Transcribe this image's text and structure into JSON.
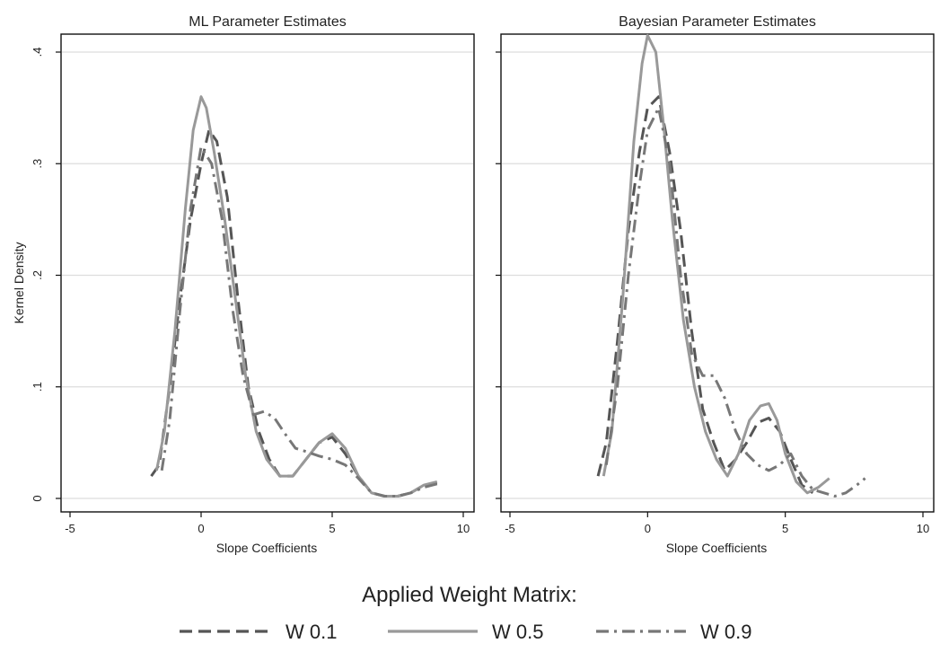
{
  "figure": {
    "ylabel": "Kernel Density",
    "legend_title": "Applied Weight Matrix:",
    "legend_placement": "bottom-center"
  },
  "series_styles": [
    {
      "name": "W 0.1",
      "color": "#555555",
      "dash": "dashed"
    },
    {
      "name": "W 0.5",
      "color": "#999999",
      "dash": "solid"
    },
    {
      "name": "W 0.9",
      "color": "#777777",
      "dash": "dash-dot"
    }
  ],
  "chart_data": [
    {
      "type": "line",
      "title": "ML Parameter Estimates",
      "xlabel": "Slope Coefficients",
      "ylabel": "Kernel Density",
      "xlim": [
        -5,
        10
      ],
      "ylim": [
        0,
        0.4
      ],
      "xticks": [
        -5,
        0,
        5,
        10
      ],
      "xtick_labels": [
        "-5",
        "0",
        "5",
        "10"
      ],
      "yticks": [
        0,
        0.1,
        0.2,
        0.3,
        0.4
      ],
      "ytick_labels": [
        "0",
        ".1",
        ".2",
        ".3",
        ".4"
      ],
      "grid": "horizontal",
      "series": [
        {
          "name": "W 0.1",
          "x": [
            -1.9,
            -1.6,
            -1.2,
            -0.8,
            -0.4,
            0,
            0.3,
            0.6,
            1,
            1.4,
            1.8,
            2.2,
            2.6,
            3,
            3.5,
            4,
            4.5,
            5,
            5.5,
            6,
            6.5,
            7,
            7.5,
            8,
            8.5,
            9
          ],
          "y": [
            0.02,
            0.03,
            0.1,
            0.18,
            0.25,
            0.3,
            0.33,
            0.32,
            0.27,
            0.18,
            0.1,
            0.06,
            0.035,
            0.02,
            0.02,
            0.035,
            0.05,
            0.055,
            0.04,
            0.02,
            0.005,
            0.002,
            0.002,
            0.005,
            0.012,
            0.014
          ]
        },
        {
          "name": "W 0.5",
          "x": [
            -1.7,
            -1.4,
            -1,
            -0.6,
            -0.3,
            0,
            0.2,
            0.5,
            0.9,
            1.3,
            1.7,
            2.1,
            2.5,
            3,
            3.5,
            4,
            4.5,
            5,
            5.5,
            6,
            6.5,
            7,
            7.5,
            8,
            8.5,
            9
          ],
          "y": [
            0.025,
            0.06,
            0.15,
            0.26,
            0.33,
            0.36,
            0.35,
            0.31,
            0.25,
            0.18,
            0.11,
            0.06,
            0.035,
            0.02,
            0.02,
            0.035,
            0.05,
            0.058,
            0.045,
            0.02,
            0.005,
            0.002,
            0.002,
            0.005,
            0.012,
            0.015
          ]
        },
        {
          "name": "W 0.9",
          "x": [
            -1.5,
            -1.2,
            -0.8,
            -0.4,
            0,
            0.4,
            0.8,
            1.2,
            1.6,
            2,
            2.4,
            2.8,
            3.2,
            3.6,
            4,
            4.5,
            5,
            5.5,
            6,
            6.5,
            7,
            7.5,
            8,
            8.5,
            9
          ],
          "y": [
            0.025,
            0.07,
            0.17,
            0.26,
            0.315,
            0.3,
            0.25,
            0.17,
            0.11,
            0.075,
            0.078,
            0.072,
            0.058,
            0.045,
            0.042,
            0.038,
            0.035,
            0.03,
            0.018,
            0.005,
            0.002,
            0.002,
            0.005,
            0.01,
            0.013
          ]
        }
      ]
    },
    {
      "type": "line",
      "title": "Bayesian Parameter Estimates",
      "xlabel": "Slope Coefficients",
      "ylabel": "",
      "xlim": [
        -5,
        10
      ],
      "ylim": [
        0,
        0.4
      ],
      "xticks": [
        -5,
        0,
        5,
        10
      ],
      "xtick_labels": [
        "-5",
        "0",
        "5",
        "10"
      ],
      "yticks": [
        0,
        0.1,
        0.2,
        0.3,
        0.4
      ],
      "ytick_labels": [
        "0",
        ".1",
        ".2",
        ".3",
        ".4"
      ],
      "grid": "horizontal",
      "series": [
        {
          "name": "W 0.1",
          "x": [
            -1.8,
            -1.5,
            -1.1,
            -0.7,
            -0.3,
            0,
            0.4,
            0.8,
            1.2,
            1.6,
            2,
            2.4,
            2.8,
            3.2,
            3.6,
            4,
            4.4,
            4.8,
            5.2,
            5.6,
            6
          ],
          "y": [
            0.02,
            0.05,
            0.14,
            0.24,
            0.31,
            0.35,
            0.36,
            0.31,
            0.24,
            0.15,
            0.08,
            0.05,
            0.025,
            0.035,
            0.05,
            0.068,
            0.072,
            0.06,
            0.035,
            0.012,
            0.005
          ]
        },
        {
          "name": "W 0.5",
          "x": [
            -1.6,
            -1.3,
            -0.9,
            -0.5,
            -0.2,
            0,
            0.3,
            0.6,
            0.9,
            1.3,
            1.7,
            2.1,
            2.5,
            2.9,
            3.3,
            3.7,
            4.1,
            4.4,
            4.7,
            5,
            5.4,
            5.8,
            6.2,
            6.6
          ],
          "y": [
            0.02,
            0.06,
            0.18,
            0.32,
            0.39,
            0.415,
            0.4,
            0.33,
            0.25,
            0.16,
            0.1,
            0.06,
            0.035,
            0.02,
            0.04,
            0.07,
            0.083,
            0.085,
            0.07,
            0.04,
            0.015,
            0.005,
            0.01,
            0.018
          ]
        },
        {
          "name": "W 0.9",
          "x": [
            -1.5,
            -1.1,
            -0.7,
            -0.3,
            0,
            0.4,
            0.8,
            1.2,
            1.6,
            2,
            2.4,
            2.8,
            3.2,
            3.6,
            4,
            4.4,
            4.8,
            5.2,
            5.6,
            6,
            6.4,
            6.8,
            7.2,
            7.6,
            7.9
          ],
          "y": [
            0.03,
            0.1,
            0.2,
            0.28,
            0.33,
            0.35,
            0.3,
            0.2,
            0.13,
            0.11,
            0.11,
            0.09,
            0.06,
            0.04,
            0.03,
            0.025,
            0.03,
            0.04,
            0.02,
            0.008,
            0.005,
            0.002,
            0.005,
            0.012,
            0.018
          ]
        }
      ]
    }
  ]
}
